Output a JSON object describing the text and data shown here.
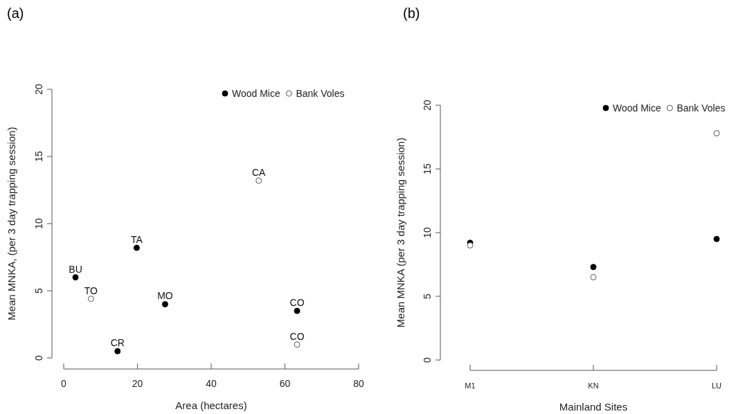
{
  "chart_data": [
    {
      "type": "scatter",
      "title": "(a)",
      "xlabel": "Area (hectares)",
      "ylabel": "Mean MNKA,  (per 3 day trapping session)",
      "xlim": [
        0,
        80
      ],
      "xticks": [
        0,
        20,
        40,
        60,
        80
      ],
      "ylim": [
        0,
        20
      ],
      "yticks": [
        0,
        5,
        10,
        15,
        20
      ],
      "legend": "top right",
      "marker": "circle",
      "grid": false,
      "series": [
        {
          "name": "Wood Mice",
          "color": "#000000",
          "x": [
            3.2,
            19.8,
            14.6,
            27.5,
            63.3
          ],
          "values": [
            6.0,
            8.2,
            0.5,
            4.0,
            3.5
          ]
        },
        {
          "name": "Bank Voles",
          "color": "#555555",
          "x": [
            7.4,
            52.9,
            63.3
          ],
          "values": [
            4.4,
            13.2,
            1.0
          ]
        }
      ],
      "annotations": [
        {
          "text": "BU",
          "x": 3.2,
          "y": 6.0
        },
        {
          "text": "TA",
          "x": 19.8,
          "y": 8.2
        },
        {
          "text": "CR",
          "x": 14.6,
          "y": 0.5
        },
        {
          "text": "MO",
          "x": 27.5,
          "y": 4.0
        },
        {
          "text": "CO",
          "x": 63.3,
          "y": 3.5
        },
        {
          "text": "TO",
          "x": 7.4,
          "y": 4.4
        },
        {
          "text": "CA",
          "x": 52.9,
          "y": 13.2
        },
        {
          "text": "CO",
          "x": 63.3,
          "y": 1.0
        }
      ]
    },
    {
      "type": "scatter",
      "title": "(b)",
      "xlabel": "Mainland Sites",
      "ylabel": "Mean MNKA (per 3 day trapping session)",
      "categories": [
        "M1",
        "KN",
        "LU"
      ],
      "ylim": [
        0,
        20
      ],
      "yticks": [
        0,
        5,
        10,
        15,
        20
      ],
      "legend": "top right",
      "marker": "circle",
      "grid": false,
      "series": [
        {
          "name": "Wood Mice",
          "color": "#000000",
          "values": [
            9.2,
            7.3,
            9.5
          ]
        },
        {
          "name": "Bank Voles",
          "color": "#555555",
          "values": [
            9.0,
            6.5,
            17.8
          ]
        }
      ]
    }
  ]
}
